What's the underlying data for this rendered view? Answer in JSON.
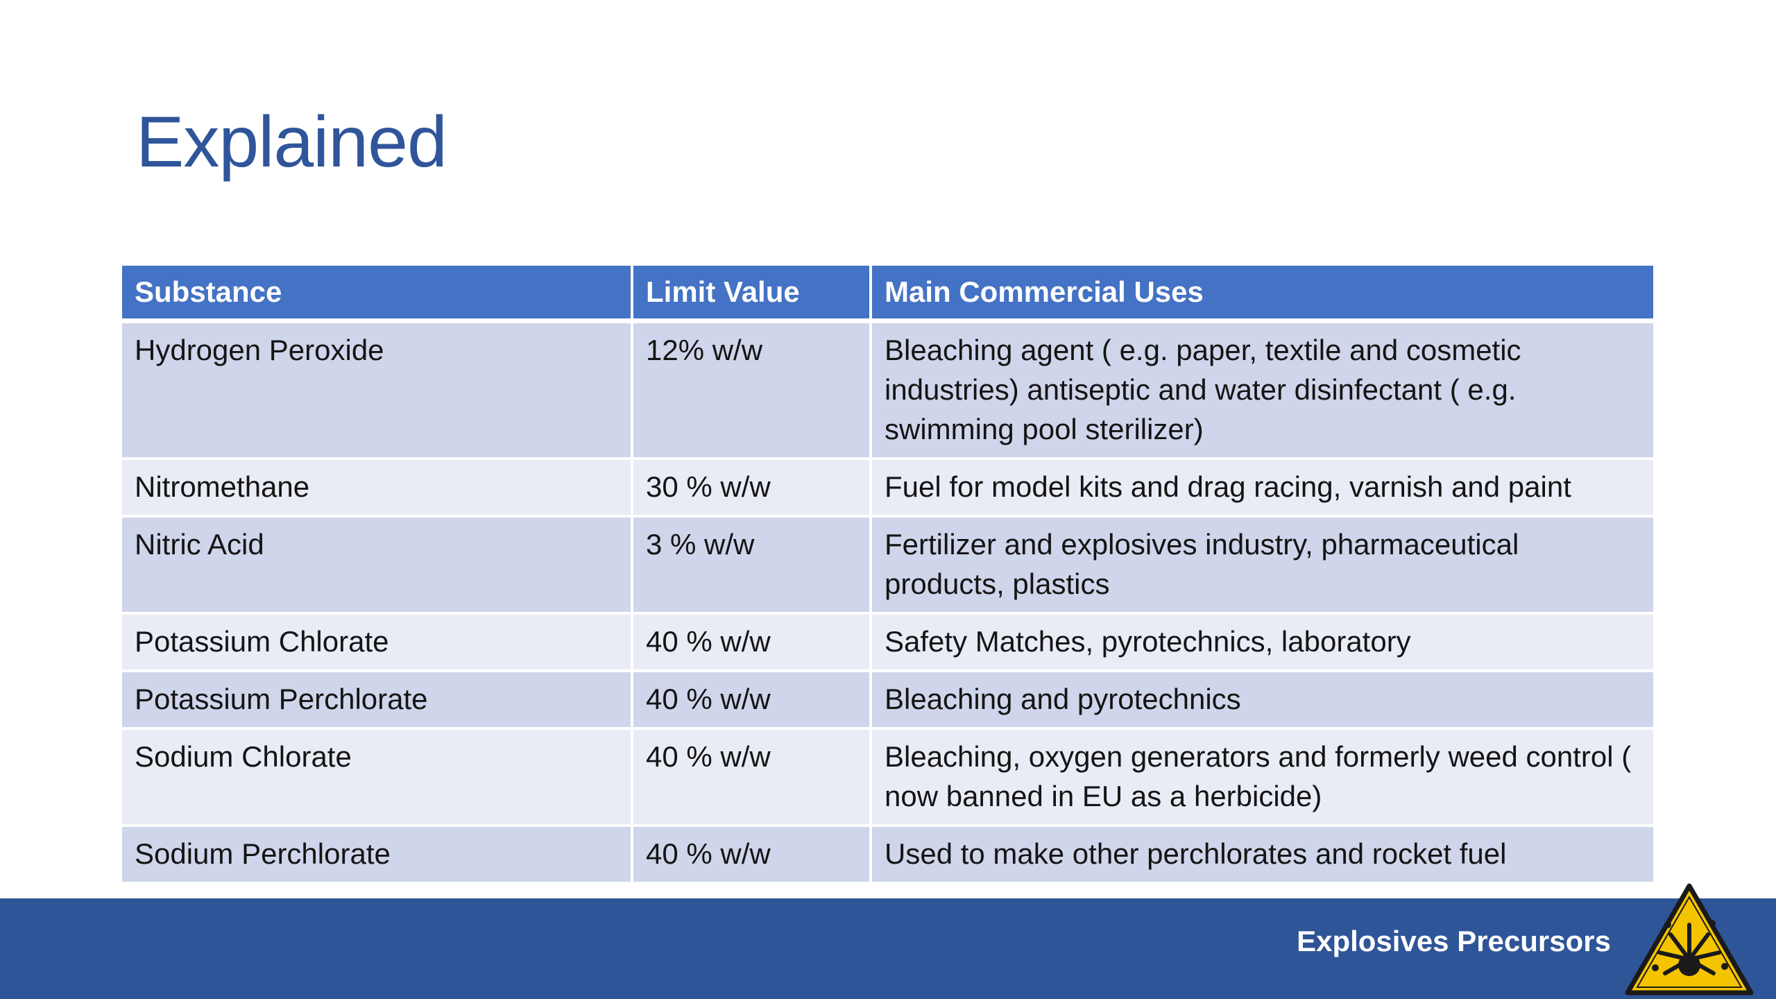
{
  "slide": {
    "title": "Explained"
  },
  "table": {
    "headers": [
      "Substance",
      "Limit Value",
      "Main Commercial Uses"
    ],
    "rows": [
      {
        "substance": "Hydrogen Peroxide",
        "limit": "12% w/w",
        "uses": "Bleaching agent ( e.g. paper, textile and cosmetic industries) antiseptic and water disinfectant ( e.g. swimming pool sterilizer)"
      },
      {
        "substance": "Nitromethane",
        "limit": "30 % w/w",
        "uses": "Fuel for model kits and drag racing, varnish and paint"
      },
      {
        "substance": "Nitric Acid",
        "limit": "3 % w/w",
        "uses": "Fertilizer and explosives industry, pharmaceutical products, plastics"
      },
      {
        "substance": "Potassium Chlorate",
        "limit": "40 % w/w",
        "uses": "Safety Matches, pyrotechnics, laboratory"
      },
      {
        "substance": "Potassium Perchlorate",
        "limit": "40 % w/w",
        "uses": "Bleaching and pyrotechnics"
      },
      {
        "substance": "Sodium Chlorate",
        "limit": "40 % w/w",
        "uses": "Bleaching, oxygen generators and formerly weed control ( now banned in EU as a herbicide)"
      },
      {
        "substance": "Sodium Perchlorate",
        "limit": "40 % w/w",
        "uses": "Used to make other perchlorates and rocket fuel"
      }
    ]
  },
  "footer": {
    "label": "Explosives Precursors",
    "icon": "explosive-hazard-icon"
  },
  "colors": {
    "title": "#2F559A",
    "header_bg": "#4472C4",
    "row_odd": "#CFD5EA",
    "row_even": "#E9EBF5",
    "footer_bg": "#2E5597",
    "hazard_yellow": "#F5C400"
  }
}
